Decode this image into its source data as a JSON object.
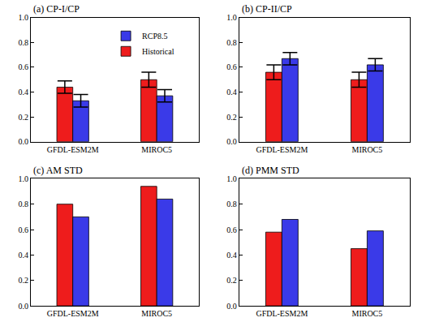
{
  "chart_data": [
    {
      "type": "bar",
      "title": "(a) CP-I/CP",
      "categories": [
        "GFDL-ESM2M",
        "MIROC5"
      ],
      "series": [
        {
          "name": "Historical",
          "color": "#ee1c1c",
          "values": [
            0.44,
            0.5
          ],
          "errors": [
            0.05,
            0.06
          ]
        },
        {
          "name": "RCP8.5",
          "color": "#3a3ae8",
          "values": [
            0.33,
            0.37
          ],
          "errors": [
            0.05,
            0.05
          ]
        }
      ],
      "ylim": [
        0,
        1
      ],
      "yticks": [
        {
          "value": 0,
          "label": "0.0"
        },
        0.2,
        0.4,
        0.6,
        0.8,
        {
          "value": 1,
          "label": "1.0"
        }
      ],
      "legend": "upper right"
    },
    {
      "type": "bar",
      "title": "(b) CP-II/CP",
      "categories": [
        "GFDL-ESM2M",
        "MIROC5"
      ],
      "series": [
        {
          "name": "Historical",
          "color": "#ee1c1c",
          "values": [
            0.56,
            0.5
          ],
          "errors": [
            0.06,
            0.06
          ]
        },
        {
          "name": "RCP8.5",
          "color": "#3a3ae8",
          "values": [
            0.67,
            0.62
          ],
          "errors": [
            0.05,
            0.05
          ]
        }
      ],
      "ylim": [
        0,
        1
      ],
      "yticks": [
        {
          "value": 0,
          "label": "0.0"
        },
        0.2,
        0.4,
        0.6,
        0.8,
        {
          "value": 1,
          "label": "1.0"
        }
      ]
    },
    {
      "type": "bar",
      "title": "(c) AM STD",
      "categories": [
        "GFDL-ESM2M",
        "MIROC5"
      ],
      "series": [
        {
          "name": "Historical",
          "color": "#ee1c1c",
          "values": [
            0.8,
            0.94
          ]
        },
        {
          "name": "RCP8.5",
          "color": "#3a3ae8",
          "values": [
            0.7,
            0.84
          ]
        }
      ],
      "ylim": [
        0,
        1
      ],
      "yticks": [
        {
          "value": 0,
          "label": "0.0"
        },
        0.2,
        0.4,
        0.6,
        0.8,
        {
          "value": 1,
          "label": "1.0"
        }
      ]
    },
    {
      "type": "bar",
      "title": "(d) PMM STD",
      "categories": [
        "GFDL-ESM2M",
        "MIROC5"
      ],
      "series": [
        {
          "name": "Historical",
          "color": "#ee1c1c",
          "values": [
            0.58,
            0.45
          ]
        },
        {
          "name": "RCP8.5",
          "color": "#3a3ae8",
          "values": [
            0.68,
            0.59
          ]
        }
      ],
      "ylim": [
        0,
        1
      ],
      "yticks": [
        {
          "value": 0,
          "label": "0.0"
        },
        0.2,
        0.4,
        0.6,
        0.8,
        {
          "value": 1,
          "label": "1.0"
        }
      ]
    }
  ]
}
